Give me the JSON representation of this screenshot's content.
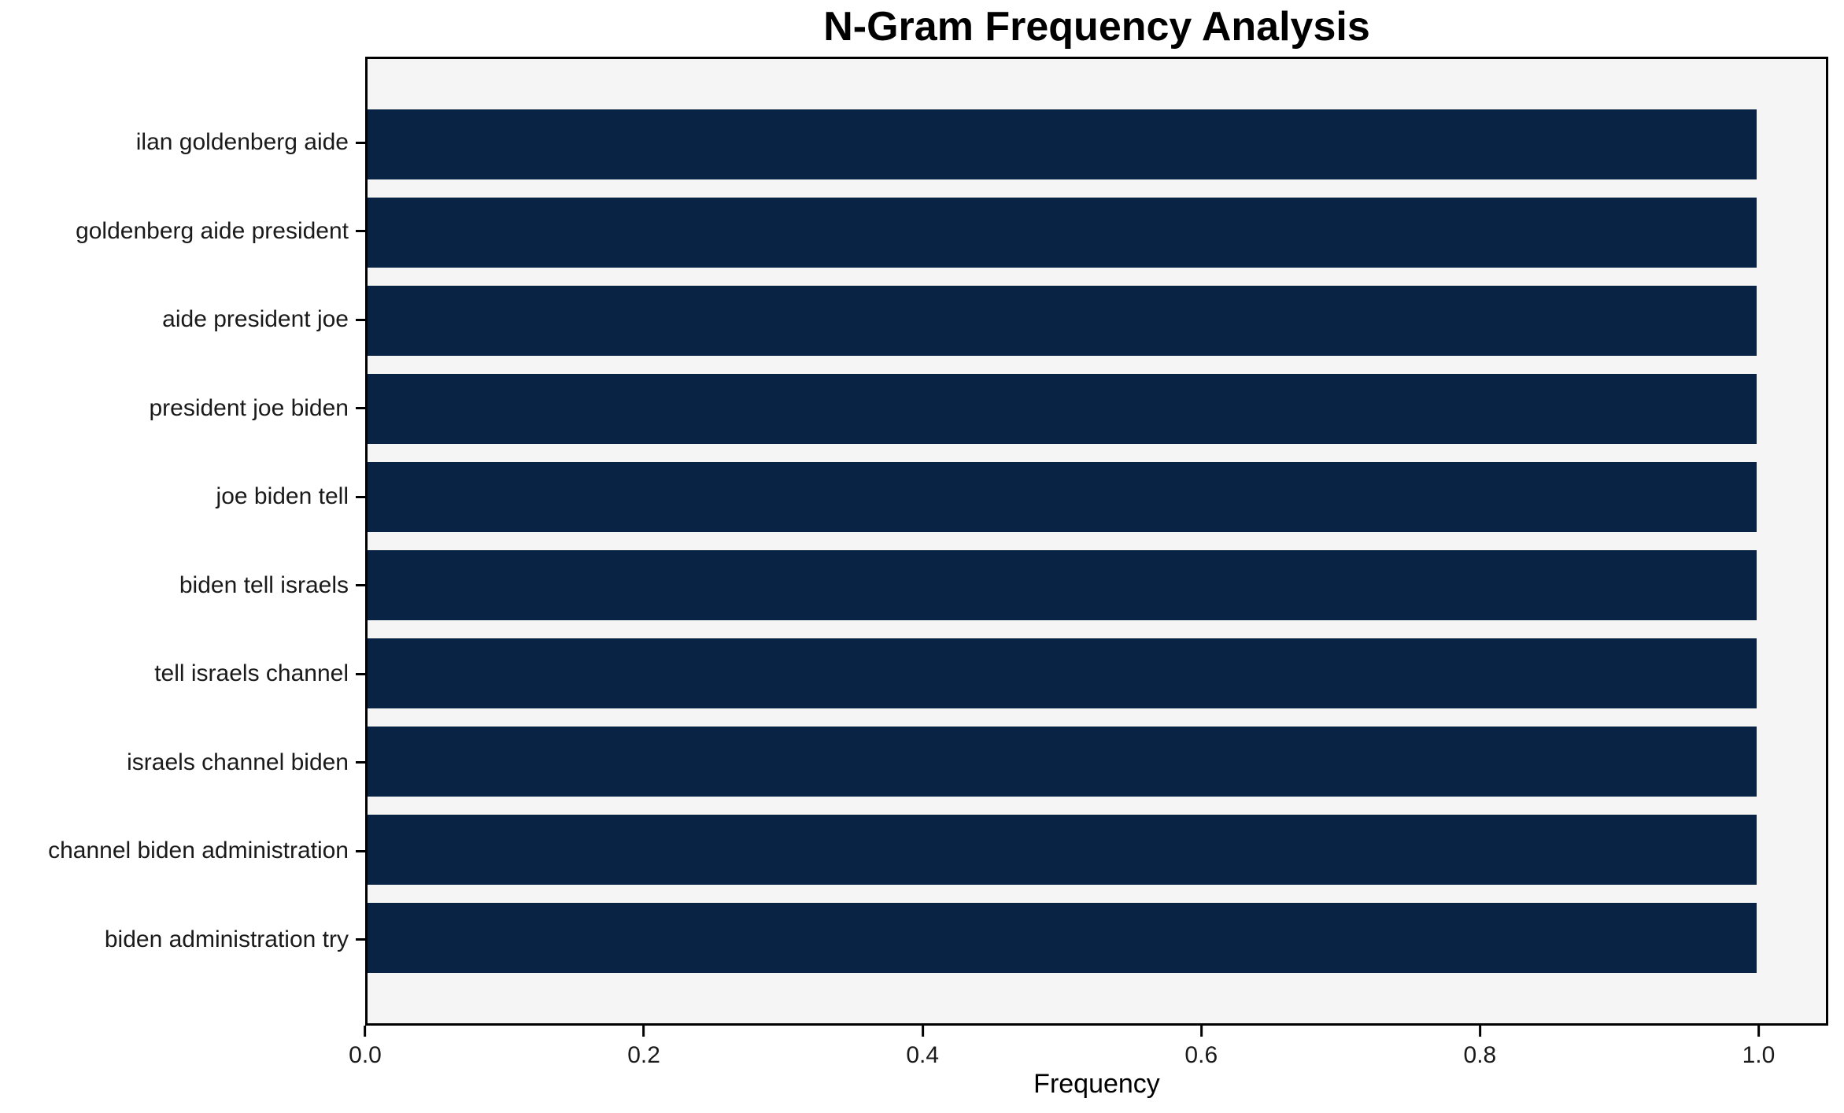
{
  "chart_data": {
    "type": "bar",
    "orientation": "horizontal",
    "title": "N-Gram Frequency Analysis",
    "xlabel": "Frequency",
    "ylabel": "",
    "categories": [
      "ilan goldenberg aide",
      "goldenberg aide president",
      "aide president joe",
      "president joe biden",
      "joe biden tell",
      "biden tell israels",
      "tell israels channel",
      "israels channel biden",
      "channel biden administration",
      "biden administration try"
    ],
    "values": [
      1.0,
      1.0,
      1.0,
      1.0,
      1.0,
      1.0,
      1.0,
      1.0,
      1.0,
      1.0
    ],
    "xlim": [
      0,
      1.05
    ],
    "xticks": [
      {
        "value": 0.0,
        "label": "0.0"
      },
      {
        "value": 0.2,
        "label": "0.2"
      },
      {
        "value": 0.4,
        "label": "0.4"
      },
      {
        "value": 0.6,
        "label": "0.6"
      },
      {
        "value": 0.8,
        "label": "0.8"
      },
      {
        "value": 1.0,
        "label": "1.0"
      }
    ],
    "grid": false,
    "legend": false,
    "bar_color": "#092345",
    "plot_background": "#f5f5f5",
    "figure_background": "#ffffff",
    "spine_color": "#000000"
  }
}
